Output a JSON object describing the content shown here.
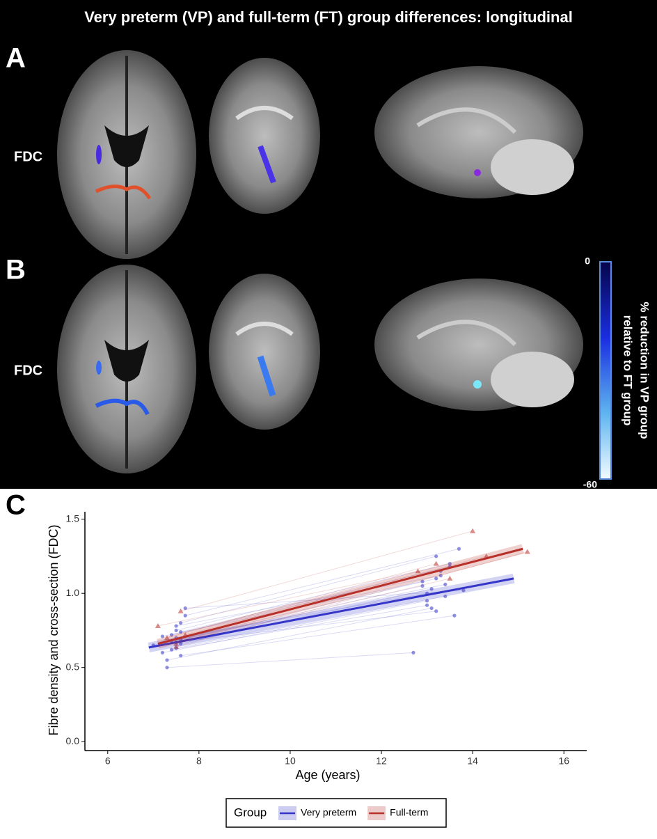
{
  "figure": {
    "title": "Very preterm (VP) and full-term (FT) group differences: longitudinal",
    "panel_a": "A",
    "panel_b": "B",
    "panel_c": "C",
    "row_a_label": "FDC",
    "row_b_label": "FDC",
    "colorbar": {
      "title_line1": "% reduction in VP group",
      "title_line2": "relative to FT group",
      "top": "0",
      "bottom": "-60"
    }
  },
  "chart_data": {
    "type": "scatter",
    "xlabel": "Age (years)",
    "ylabel": "Fibre density and cross-section (FDC)",
    "xlim": [
      5.5,
      16.5
    ],
    "ylim": [
      -0.06,
      1.55
    ],
    "xticks": [
      6,
      8,
      10,
      12,
      14,
      16
    ],
    "yticks": [
      {
        "value": 0,
        "label": "0.0"
      },
      {
        "value": 0.5,
        "label": "0.5"
      },
      {
        "value": 1,
        "label": "1.0"
      },
      {
        "value": 1.5,
        "label": "1.5"
      }
    ],
    "legend_title": "Group",
    "series": [
      {
        "name": "Very preterm",
        "color": "#3535c8",
        "marker": "circle",
        "x": [
          7.0,
          7.2,
          7.3,
          7.4,
          7.4,
          7.5,
          7.5,
          7.5,
          7.6,
          7.6,
          7.6,
          7.7,
          7.3,
          7.5,
          7.6,
          7.4,
          7.2,
          7.7,
          7.5,
          7.6,
          12.9,
          13.0,
          13.1,
          13.2,
          13.3,
          13.0,
          13.4,
          13.5,
          13.1,
          13.2,
          13.6,
          13.7,
          12.7,
          13.3,
          13.4,
          13.0,
          12.9,
          13.8,
          13.2,
          13.5
        ],
        "values": [
          0.65,
          0.6,
          0.55,
          0.68,
          0.72,
          0.7,
          0.63,
          0.75,
          0.66,
          0.8,
          0.58,
          0.85,
          0.5,
          0.78,
          0.69,
          0.62,
          0.71,
          0.9,
          0.67,
          0.74,
          1.05,
          0.95,
          0.9,
          1.1,
          1.15,
          1.0,
          0.98,
          1.2,
          1.03,
          1.25,
          0.85,
          1.3,
          0.6,
          1.12,
          1.06,
          0.92,
          1.08,
          1.02,
          0.88,
          1.18
        ],
        "fit": {
          "x": [
            6.9,
            14.9
          ],
          "values": [
            0.635,
            1.1
          ]
        }
      },
      {
        "name": "Full-term",
        "color": "#b8302a",
        "marker": "triangle",
        "x": [
          7.1,
          7.3,
          7.5,
          7.6,
          7.7,
          7.5,
          12.8,
          13.2,
          13.5,
          14.0,
          14.3,
          15.2
        ],
        "values": [
          0.78,
          0.7,
          0.66,
          0.88,
          0.72,
          0.64,
          1.15,
          1.2,
          1.1,
          1.42,
          1.25,
          1.28
        ],
        "fit": {
          "x": [
            7.1,
            15.1
          ],
          "values": [
            0.66,
            1.3
          ]
        }
      }
    ]
  }
}
